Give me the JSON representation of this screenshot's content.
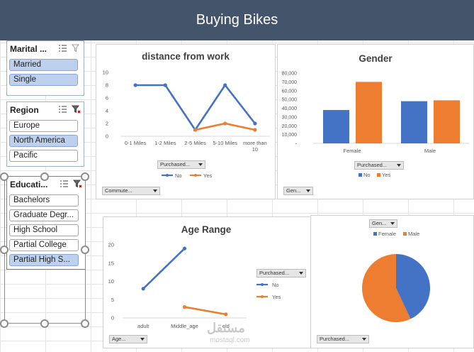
{
  "banner_title": "Buying Bikes",
  "colors": {
    "banner": "#44546a",
    "series_no": "#4472c4",
    "series_yes": "#ed7d31",
    "slicer_selected": "#bdd0ee"
  },
  "slicers": {
    "marital": {
      "title": "Marital ...",
      "items": [
        "Married",
        "Single"
      ],
      "selected": [
        true,
        true
      ]
    },
    "region": {
      "title": "Region",
      "items": [
        "Europe",
        "North America",
        "Pacific"
      ],
      "selected": [
        false,
        true,
        false
      ]
    },
    "education": {
      "title": "Educati...",
      "items": [
        "Bachelors",
        "Graduate Degr...",
        "High School",
        "Partial College",
        "Partial High S..."
      ],
      "selected": [
        false,
        false,
        false,
        false,
        true
      ]
    }
  },
  "chart_data": [
    {
      "type": "line",
      "title": "distance from work",
      "categories": [
        "0-1 Miles",
        "1-2 Miles",
        "2-5 Miles",
        "5-10 Miles",
        "more than 10"
      ],
      "series": [
        {
          "name": "No",
          "values": [
            8,
            8,
            1,
            8,
            2
          ]
        },
        {
          "name": "Yes",
          "values": [
            null,
            null,
            1,
            2,
            1
          ]
        }
      ],
      "ylim": [
        0,
        10
      ],
      "yticks": [
        "0",
        "2",
        "4",
        "6",
        "8",
        "10"
      ],
      "legend": "bottom",
      "filter_button": "Purchased...",
      "axis_button": "Commute..."
    },
    {
      "type": "bar",
      "title": "Gender",
      "categories": [
        "Female",
        "Male"
      ],
      "series": [
        {
          "name": "No",
          "values": [
            38000,
            48000
          ]
        },
        {
          "name": "Yes",
          "values": [
            70000,
            49000
          ]
        }
      ],
      "ylim": [
        0,
        80000
      ],
      "yticks": [
        "-",
        "10,000",
        "20,000",
        "30,000",
        "40,000",
        "50,000",
        "60,000",
        "70,000",
        "80,000"
      ],
      "legend": "bottom",
      "filter_button": "Purchased...",
      "axis_button": "Gen..."
    },
    {
      "type": "line",
      "title": "Age  Range",
      "categories": [
        "adult",
        "Middle_age",
        "old"
      ],
      "series": [
        {
          "name": "No",
          "values": [
            8,
            19,
            null
          ]
        },
        {
          "name": "Yes",
          "values": [
            null,
            3,
            1
          ]
        }
      ],
      "ylim": [
        0,
        20
      ],
      "yticks": [
        "0",
        "5",
        "10",
        "15",
        "20"
      ],
      "legend": "right",
      "filter_button": "Purchased...",
      "axis_button": "Age..."
    },
    {
      "type": "pie",
      "title": "",
      "labels": [
        "Female",
        "Male"
      ],
      "values": [
        43,
        57
      ],
      "legend": "top",
      "filter_button": "Gen...",
      "axis_button": "Purchased..."
    }
  ],
  "watermark": {
    "arabic": "مستقل",
    "latin": "mostaql.com"
  }
}
